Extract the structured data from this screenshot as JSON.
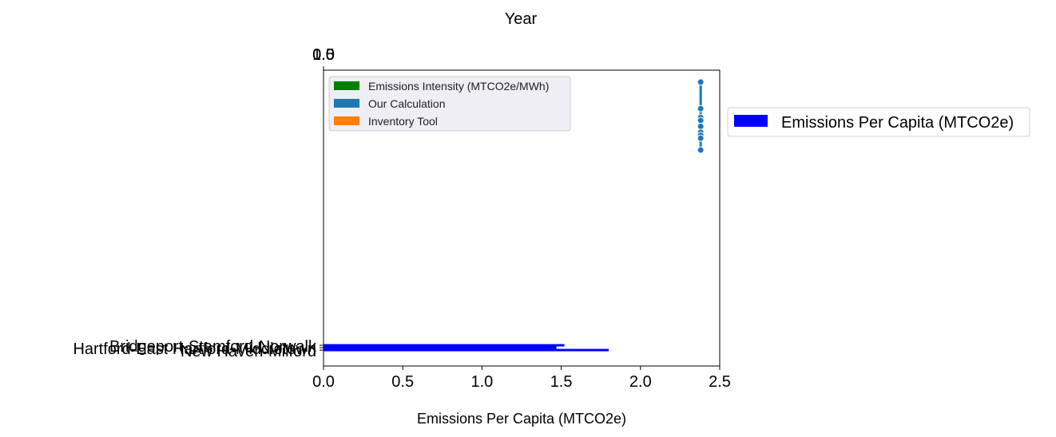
{
  "chart_data": {
    "type": "bar",
    "orientation": "horizontal",
    "title": "Year",
    "xlabel": "Emissions Per Capita (MTCO2e)",
    "xlim": [
      0,
      2.5
    ],
    "xticks": [
      "0.0",
      "0.5",
      "1.0",
      "1.5",
      "2.0",
      "2.5"
    ],
    "top_ticks": [
      "0.0",
      "0.5",
      "1.0"
    ],
    "categories": [
      "Hartford-East Hartford-Middletown",
      "New Haven-Milford",
      "Bridgeport-Stamford-Norwalk"
    ],
    "series": [
      {
        "name": "Emissions Per Capita (MTCO2e)",
        "color": "#0000ff",
        "values": [
          1.47,
          1.8,
          1.52
        ]
      }
    ],
    "overlay_points": {
      "color": "#1f77b4",
      "x": [
        2.38,
        2.38,
        2.38,
        2.38,
        2.38,
        2.38,
        2.38,
        2.38,
        2.38
      ],
      "y_fraction": [
        0.96,
        0.87,
        0.84,
        0.83,
        0.81,
        0.79,
        0.78,
        0.77,
        0.73
      ]
    },
    "inner_legend": {
      "placement": "top-left",
      "entries": [
        {
          "label": "Emissions Intensity (MTCO2e/MWh)",
          "color": "#008000"
        },
        {
          "label": "Our Calculation",
          "color": "#1f77b4"
        },
        {
          "label": "Inventory Tool",
          "color": "#ff7f0e"
        }
      ]
    },
    "outer_legend": {
      "placement": "right",
      "entries": [
        {
          "label": "Emissions Per Capita (MTCO2e)",
          "color": "#0000ff"
        }
      ]
    }
  }
}
